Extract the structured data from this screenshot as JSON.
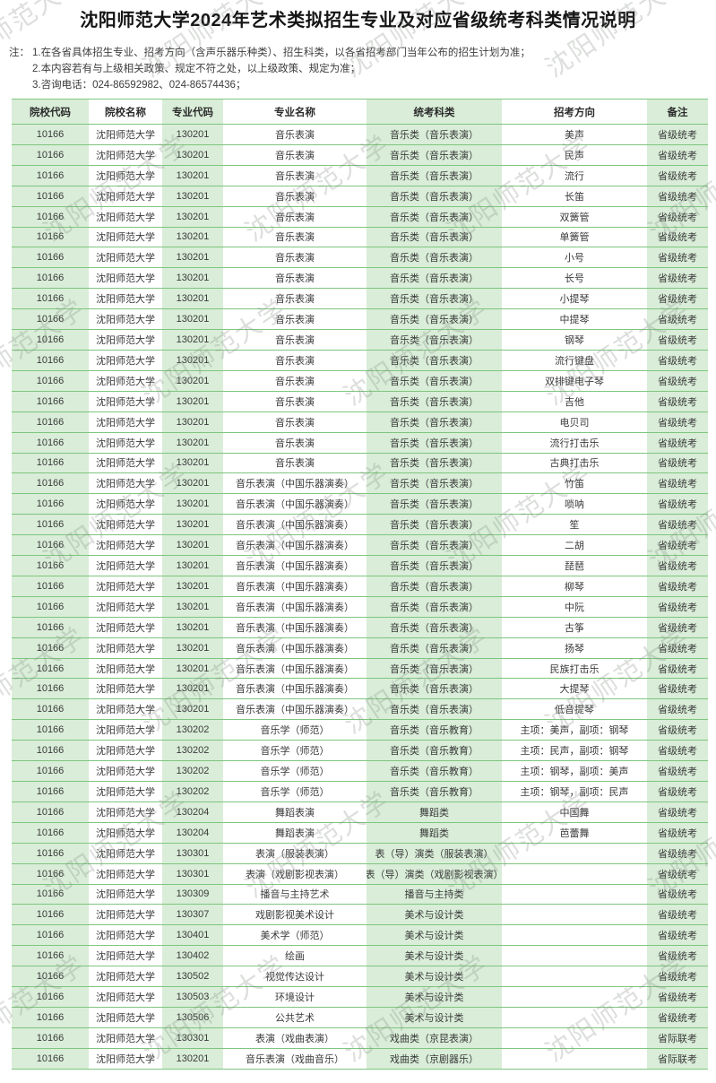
{
  "title": "沈阳师范大学2024年艺术类拟招生专业及对应省级统考科类情况说明",
  "watermark_text": "沈阳师范大学",
  "notes": {
    "label": "注：",
    "items": [
      "1.在各省具体招生专业、招考方向（含声乐器乐种类）、招生科类，以各省招考部门当年公布的招生计划为准；",
      "2.本内容若有与上级相关政策、规定不符之处，以上级政策、规定为准；",
      "3.咨询电话：024-86592982、024-86574436；"
    ]
  },
  "table": {
    "columns": [
      "院校代码",
      "院校名称",
      "专业代码",
      "专业名称",
      "统考科类",
      "招考方向",
      "备注"
    ],
    "rows": [
      [
        "10166",
        "沈阳师范大学",
        "130201",
        "音乐表演",
        "音乐类（音乐表演）",
        "美声",
        "省级统考"
      ],
      [
        "10166",
        "沈阳师范大学",
        "130201",
        "音乐表演",
        "音乐类（音乐表演）",
        "民声",
        "省级统考"
      ],
      [
        "10166",
        "沈阳师范大学",
        "130201",
        "音乐表演",
        "音乐类（音乐表演）",
        "流行",
        "省级统考"
      ],
      [
        "10166",
        "沈阳师范大学",
        "130201",
        "音乐表演",
        "音乐类（音乐表演）",
        "长笛",
        "省级统考"
      ],
      [
        "10166",
        "沈阳师范大学",
        "130201",
        "音乐表演",
        "音乐类（音乐表演）",
        "双簧管",
        "省级统考"
      ],
      [
        "10166",
        "沈阳师范大学",
        "130201",
        "音乐表演",
        "音乐类（音乐表演）",
        "单簧管",
        "省级统考"
      ],
      [
        "10166",
        "沈阳师范大学",
        "130201",
        "音乐表演",
        "音乐类（音乐表演）",
        "小号",
        "省级统考"
      ],
      [
        "10166",
        "沈阳师范大学",
        "130201",
        "音乐表演",
        "音乐类（音乐表演）",
        "长号",
        "省级统考"
      ],
      [
        "10166",
        "沈阳师范大学",
        "130201",
        "音乐表演",
        "音乐类（音乐表演）",
        "小提琴",
        "省级统考"
      ],
      [
        "10166",
        "沈阳师范大学",
        "130201",
        "音乐表演",
        "音乐类（音乐表演）",
        "中提琴",
        "省级统考"
      ],
      [
        "10166",
        "沈阳师范大学",
        "130201",
        "音乐表演",
        "音乐类（音乐表演）",
        "钢琴",
        "省级统考"
      ],
      [
        "10166",
        "沈阳师范大学",
        "130201",
        "音乐表演",
        "音乐类（音乐表演）",
        "流行键盘",
        "省级统考"
      ],
      [
        "10166",
        "沈阳师范大学",
        "130201",
        "音乐表演",
        "音乐类（音乐表演）",
        "双排键电子琴",
        "省级统考"
      ],
      [
        "10166",
        "沈阳师范大学",
        "130201",
        "音乐表演",
        "音乐类（音乐表演）",
        "吉他",
        "省级统考"
      ],
      [
        "10166",
        "沈阳师范大学",
        "130201",
        "音乐表演",
        "音乐类（音乐表演）",
        "电贝司",
        "省级统考"
      ],
      [
        "10166",
        "沈阳师范大学",
        "130201",
        "音乐表演",
        "音乐类（音乐表演）",
        "流行打击乐",
        "省级统考"
      ],
      [
        "10166",
        "沈阳师范大学",
        "130201",
        "音乐表演",
        "音乐类（音乐表演）",
        "古典打击乐",
        "省级统考"
      ],
      [
        "10166",
        "沈阳师范大学",
        "130201",
        "音乐表演（中国乐器演奏）",
        "音乐类（音乐表演）",
        "竹笛",
        "省级统考"
      ],
      [
        "10166",
        "沈阳师范大学",
        "130201",
        "音乐表演（中国乐器演奏）",
        "音乐类（音乐表演）",
        "唢呐",
        "省级统考"
      ],
      [
        "10166",
        "沈阳师范大学",
        "130201",
        "音乐表演（中国乐器演奏）",
        "音乐类（音乐表演）",
        "笙",
        "省级统考"
      ],
      [
        "10166",
        "沈阳师范大学",
        "130201",
        "音乐表演（中国乐器演奏）",
        "音乐类（音乐表演）",
        "二胡",
        "省级统考"
      ],
      [
        "10166",
        "沈阳师范大学",
        "130201",
        "音乐表演（中国乐器演奏）",
        "音乐类（音乐表演）",
        "琵琶",
        "省级统考"
      ],
      [
        "10166",
        "沈阳师范大学",
        "130201",
        "音乐表演（中国乐器演奏）",
        "音乐类（音乐表演）",
        "柳琴",
        "省级统考"
      ],
      [
        "10166",
        "沈阳师范大学",
        "130201",
        "音乐表演（中国乐器演奏）",
        "音乐类（音乐表演）",
        "中阮",
        "省级统考"
      ],
      [
        "10166",
        "沈阳师范大学",
        "130201",
        "音乐表演（中国乐器演奏）",
        "音乐类（音乐表演）",
        "古筝",
        "省级统考"
      ],
      [
        "10166",
        "沈阳师范大学",
        "130201",
        "音乐表演（中国乐器演奏）",
        "音乐类（音乐表演）",
        "扬琴",
        "省级统考"
      ],
      [
        "10166",
        "沈阳师范大学",
        "130201",
        "音乐表演（中国乐器演奏）",
        "音乐类（音乐表演）",
        "民族打击乐",
        "省级统考"
      ],
      [
        "10166",
        "沈阳师范大学",
        "130201",
        "音乐表演（中国乐器演奏）",
        "音乐类（音乐表演）",
        "大提琴",
        "省级统考"
      ],
      [
        "10166",
        "沈阳师范大学",
        "130201",
        "音乐表演（中国乐器演奏）",
        "音乐类（音乐表演）",
        "低音提琴",
        "省级统考"
      ],
      [
        "10166",
        "沈阳师范大学",
        "130202",
        "音乐学（师范）",
        "音乐类（音乐教育）",
        "主项：美声，副项：钢琴",
        "省级统考"
      ],
      [
        "10166",
        "沈阳师范大学",
        "130202",
        "音乐学（师范）",
        "音乐类（音乐教育）",
        "主项：民声，副项：钢琴",
        "省级统考"
      ],
      [
        "10166",
        "沈阳师范大学",
        "130202",
        "音乐学（师范）",
        "音乐类（音乐教育）",
        "主项：钢琴，副项：美声",
        "省级统考"
      ],
      [
        "10166",
        "沈阳师范大学",
        "130202",
        "音乐学（师范）",
        "音乐类（音乐教育）",
        "主项：钢琴，副项：民声",
        "省级统考"
      ],
      [
        "10166",
        "沈阳师范大学",
        "130204",
        "舞蹈表演",
        "舞蹈类",
        "中国舞",
        "省级统考"
      ],
      [
        "10166",
        "沈阳师范大学",
        "130204",
        "舞蹈表演",
        "舞蹈类",
        "芭蕾舞",
        "省级统考"
      ],
      [
        "10166",
        "沈阳师范大学",
        "130301",
        "表演（服装表演）",
        "表（导）演类（服装表演）",
        "",
        "省级统考"
      ],
      [
        "10166",
        "沈阳师范大学",
        "130301",
        "表演（戏剧影视表演）",
        "表（导）演类（戏剧影视表演）",
        "",
        "省级统考"
      ],
      [
        "10166",
        "沈阳师范大学",
        "130309",
        "播音与主持艺术",
        "播音与主持类",
        "",
        "省级统考"
      ],
      [
        "10166",
        "沈阳师范大学",
        "130307",
        "戏剧影视美术设计",
        "美术与设计类",
        "",
        "省级统考"
      ],
      [
        "10166",
        "沈阳师范大学",
        "130401",
        "美术学（师范）",
        "美术与设计类",
        "",
        "省级统考"
      ],
      [
        "10166",
        "沈阳师范大学",
        "130402",
        "绘画",
        "美术与设计类",
        "",
        "省级统考"
      ],
      [
        "10166",
        "沈阳师范大学",
        "130502",
        "视觉传达设计",
        "美术与设计类",
        "",
        "省级统考"
      ],
      [
        "10166",
        "沈阳师范大学",
        "130503",
        "环境设计",
        "美术与设计类",
        "",
        "省级统考"
      ],
      [
        "10166",
        "沈阳师范大学",
        "130506",
        "公共艺术",
        "美术与设计类",
        "",
        "省级统考"
      ],
      [
        "10166",
        "沈阳师范大学",
        "130301",
        "表演（戏曲表演）",
        "戏曲类（京昆表演）",
        "",
        "省际联考"
      ],
      [
        "10166",
        "沈阳师范大学",
        "130201",
        "音乐表演（戏曲音乐）",
        "戏曲类（京剧器乐）",
        "",
        "省际联考"
      ]
    ]
  },
  "colors": {
    "cell_green": "#d9edd8",
    "border_green": "#7ec67e",
    "text": "#3a3a3a",
    "watermark": "rgba(128,140,128,0.28)"
  }
}
